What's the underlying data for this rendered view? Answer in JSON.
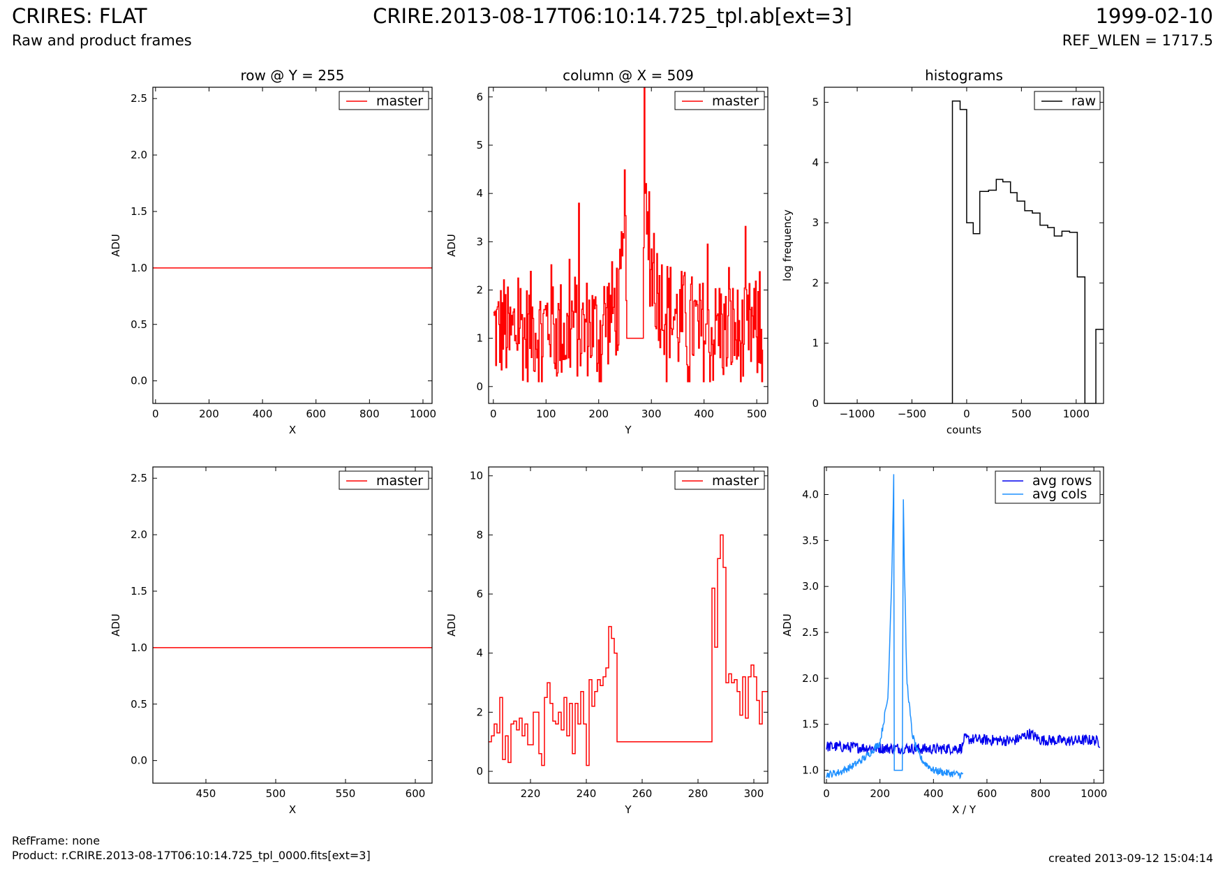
{
  "header": {
    "title": "CRIRES: FLAT",
    "subtitle": "Raw and product frames",
    "file": "CRIRE.2013-08-17T06:10:14.725_tpl.ab[ext=3]",
    "date": "1999-02-10",
    "ref_wlen": "REF_WLEN = 1717.5"
  },
  "footer": {
    "ref_frame": "RefFrame: none",
    "product": "Product: r.CRIRE.2013-08-17T06:10:14.725_tpl_0000.fits[ext=3]",
    "created": "created 2013-09-12 15:04:14"
  },
  "colors": {
    "master": "#ff0000",
    "raw": "#000000",
    "avg_rows": "#0000ee",
    "avg_cols": "#1e90ff"
  },
  "chart_data": [
    {
      "type": "line",
      "title": "row @ Y = 255",
      "xlabel": "X",
      "ylabel": "ADU",
      "xlim": [
        -10,
        1034
      ],
      "ylim": [
        -0.2,
        2.6
      ],
      "xticks": [
        0,
        200,
        400,
        600,
        800,
        1000
      ],
      "yticks": [
        0.0,
        0.5,
        1.0,
        1.5,
        2.0,
        2.5
      ],
      "yfmt": 1,
      "legend": "top-right",
      "step": false,
      "series": [
        {
          "name": "master",
          "color": "#ff0000",
          "x": [
            -10,
            1034
          ],
          "y": [
            1.0,
            1.0
          ]
        }
      ]
    },
    {
      "type": "line",
      "title": "column @ X = 509",
      "xlabel": "Y",
      "ylabel": "ADU",
      "xlim": [
        -9,
        521
      ],
      "ylim": [
        -0.35,
        6.2
      ],
      "xticks": [
        0,
        100,
        200,
        300,
        400,
        500
      ],
      "yticks": [
        0,
        1,
        2,
        3,
        4,
        5,
        6
      ],
      "yfmt": 0,
      "legend": "top-right",
      "step": true,
      "noisy": true,
      "series": [
        {
          "name": "master",
          "color": "#ff0000",
          "x": [
            0,
            10,
            20,
            30,
            40,
            50,
            60,
            70,
            80,
            90,
            100,
            110,
            120,
            130,
            140,
            150,
            160,
            170,
            180,
            190,
            200,
            210,
            220,
            230,
            240,
            248,
            250,
            253,
            270,
            284,
            286,
            288,
            290,
            292,
            300,
            310,
            320,
            330,
            340,
            350,
            360,
            370,
            380,
            390,
            400,
            410,
            420,
            430,
            440,
            450,
            460,
            470,
            480,
            490,
            500,
            511
          ],
          "y": [
            1.2,
            1.1,
            1.3,
            0.9,
            1.2,
            1.4,
            1.0,
            1.3,
            1.2,
            1.1,
            1.3,
            1.5,
            1.1,
            1.2,
            1.0,
            1.4,
            1.2,
            1.1,
            1.3,
            1.2,
            1.0,
            1.4,
            1.5,
            1.6,
            1.8,
            2.8,
            4.9,
            1.0,
            1.0,
            1.0,
            6.2,
            4.0,
            2.8,
            3.0,
            2.5,
            2.0,
            1.8,
            1.6,
            1.5,
            1.3,
            1.4,
            1.2,
            1.3,
            1.1,
            1.2,
            1.0,
            1.1,
            1.3,
            1.0,
            1.2,
            1.1,
            0.9,
            1.0,
            1.2,
            1.1,
            0.9
          ]
        }
      ]
    },
    {
      "type": "line",
      "title": "histograms",
      "xlabel": "counts",
      "ylabel": "log frequency",
      "xlim": [
        -1300,
        1250
      ],
      "ylim": [
        0,
        5.25
      ],
      "xticks": [
        -1000,
        -500,
        0,
        500,
        1000
      ],
      "yticks": [
        0,
        1,
        2,
        3,
        4,
        5
      ],
      "yfmt": 0,
      "legend": "top-right",
      "step": true,
      "series": [
        {
          "name": "raw",
          "color": "#000000",
          "x": [
            -1300,
            -130,
            -130,
            -60,
            0,
            60,
            120,
            200,
            270,
            330,
            400,
            460,
            530,
            600,
            670,
            740,
            800,
            870,
            940,
            1010,
            1080,
            1150,
            1180
          ],
          "y": [
            0,
            0,
            5.02,
            4.88,
            3.0,
            2.82,
            3.52,
            3.54,
            3.72,
            3.68,
            3.5,
            3.36,
            3.2,
            3.16,
            2.96,
            2.92,
            2.78,
            2.86,
            2.84,
            2.1,
            0,
            0,
            1.23
          ]
        }
      ]
    },
    {
      "type": "line",
      "title": "",
      "xlabel": "X",
      "ylabel": "ADU",
      "xlim": [
        412,
        612
      ],
      "ylim": [
        -0.2,
        2.6
      ],
      "xticks": [
        450,
        500,
        550,
        600
      ],
      "yticks": [
        0.0,
        0.5,
        1.0,
        1.5,
        2.0,
        2.5
      ],
      "yfmt": 1,
      "legend": "top-right",
      "step": false,
      "series": [
        {
          "name": "master",
          "color": "#ff0000",
          "x": [
            412,
            612
          ],
          "y": [
            1.0,
            1.0
          ]
        }
      ]
    },
    {
      "type": "line",
      "title": "",
      "xlabel": "Y",
      "ylabel": "ADU",
      "xlim": [
        205,
        305
      ],
      "ylim": [
        -0.4,
        10.3
      ],
      "xticks": [
        220,
        240,
        260,
        280,
        300
      ],
      "yticks": [
        0,
        2,
        4,
        6,
        8,
        10
      ],
      "yfmt": 0,
      "legend": "top-right",
      "step": true,
      "series": [
        {
          "name": "master",
          "color": "#ff0000",
          "x": [
            205,
            206,
            207,
            208,
            209,
            210,
            211,
            212,
            213,
            214,
            215,
            216,
            217,
            218,
            219,
            220,
            221,
            222,
            223,
            224,
            225,
            226,
            227,
            228,
            229,
            230,
            231,
            232,
            233,
            234,
            235,
            236,
            237,
            238,
            239,
            240,
            241,
            242,
            243,
            244,
            245,
            246,
            247,
            248,
            249,
            250,
            251,
            252,
            253,
            254,
            285,
            286,
            287,
            288,
            289,
            290,
            291,
            292,
            293,
            294,
            295,
            296,
            297,
            298,
            299,
            300,
            301,
            302,
            303,
            304
          ],
          "y": [
            1.0,
            1.2,
            1.6,
            1.3,
            2.5,
            0.4,
            1.2,
            0.3,
            1.6,
            1.7,
            1.4,
            1.8,
            1.2,
            1.6,
            0.9,
            0.9,
            2.0,
            2.0,
            0.6,
            0.2,
            2.5,
            3.0,
            2.3,
            1.7,
            1.6,
            2.0,
            1.4,
            2.5,
            1.2,
            2.3,
            0.6,
            2.3,
            1.6,
            2.7,
            1.6,
            0.2,
            3.1,
            2.2,
            2.7,
            3.1,
            2.9,
            3.2,
            3.5,
            4.9,
            4.5,
            4.0,
            1.0,
            1.0,
            1.0,
            1.0,
            6.2,
            4.2,
            7.2,
            8.0,
            6.9,
            3.0,
            3.3,
            3.0,
            3.1,
            2.7,
            1.9,
            3.2,
            1.8,
            3.2,
            3.6,
            3.2,
            2.4,
            1.6,
            2.7,
            2.7
          ]
        }
      ]
    },
    {
      "type": "line",
      "title": "",
      "xlabel": "X / Y",
      "ylabel": "ADU",
      "xlim": [
        -8,
        1036
      ],
      "ylim": [
        0.86,
        4.3
      ],
      "xticks": [
        0,
        200,
        400,
        600,
        800,
        1000
      ],
      "yticks": [
        1.0,
        1.5,
        2.0,
        2.5,
        3.0,
        3.5,
        4.0
      ],
      "yfmt": 1,
      "legend": "top-right",
      "step": false,
      "noisy": true,
      "series": [
        {
          "name": "avg rows",
          "color": "#0000ee",
          "x": [
            0,
            100,
            200,
            300,
            400,
            500,
            511,
            512,
            600,
            700,
            760,
            800,
            900,
            1000,
            1023
          ],
          "y": [
            1.26,
            1.25,
            1.24,
            1.24,
            1.23,
            1.24,
            1.26,
            1.34,
            1.33,
            1.32,
            1.4,
            1.33,
            1.32,
            1.33,
            1.3
          ]
        },
        {
          "name": "avg cols",
          "color": "#1e90ff",
          "x": [
            0,
            50,
            100,
            150,
            200,
            230,
            245,
            252,
            253,
            285,
            286,
            290,
            300,
            320,
            340,
            360,
            400,
            450,
            511
          ],
          "y": [
            0.95,
            0.98,
            1.05,
            1.15,
            1.3,
            1.8,
            3.2,
            4.3,
            1.0,
            1.0,
            4.3,
            3.4,
            2.0,
            1.4,
            1.2,
            1.1,
            1.0,
            0.97,
            0.95
          ]
        }
      ]
    }
  ]
}
